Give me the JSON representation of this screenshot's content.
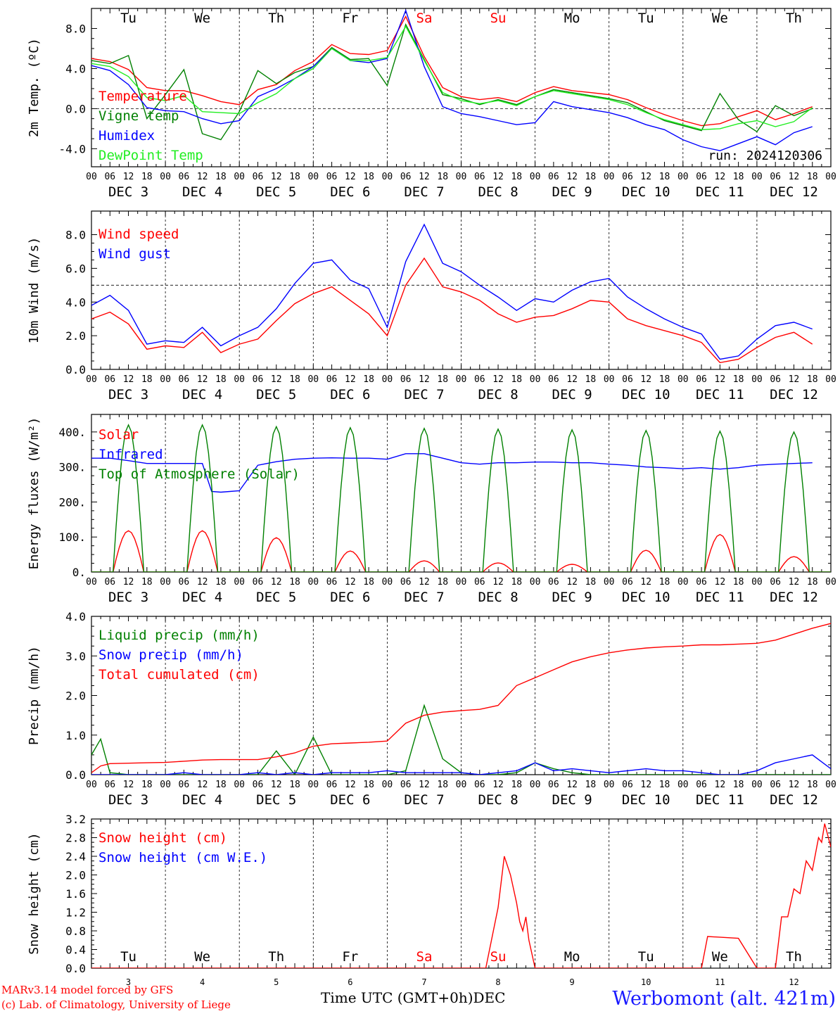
{
  "colors": {
    "red": "#ff0000",
    "green": "#008000",
    "blue": "#0000ff",
    "lightgreen": "#22ee22",
    "axis": "#000000"
  },
  "days": {
    "weekdays": [
      "Tu",
      "We",
      "Th",
      "Fr",
      "Sa",
      "Su",
      "Mo",
      "Tu",
      "We",
      "Th"
    ],
    "weekday_colors": [
      "#000000",
      "#000000",
      "#000000",
      "#000000",
      "#ff0000",
      "#ff0000",
      "#000000",
      "#000000",
      "#000000",
      "#000000"
    ],
    "dates": [
      "DEC  3",
      "DEC  4",
      "DEC  5",
      "DEC  6",
      "DEC  7",
      "DEC  8",
      "DEC  9",
      "DEC 10",
      "DEC 11",
      "DEC 12"
    ],
    "hour_ticks": [
      "00",
      "06",
      "12",
      "18"
    ],
    "bottom_numbers": [
      "3",
      "4",
      "5",
      "6",
      "7",
      "8",
      "9",
      "10",
      "11",
      "12"
    ],
    "bottom_month": "DEC"
  },
  "footer": {
    "credit1": "MARv3.14 model forced by GFS",
    "credit2": "(c) Lab. of Climatology, University of Liege",
    "xtitle": "Time UTC (GMT+0h)",
    "station": "Werbomont (alt. 421m)"
  },
  "chart_data": [
    {
      "type": "line",
      "ylabel": "2m Temp. (ºC)",
      "ylim": [
        -5.8,
        10
      ],
      "yticks": [
        "8.0",
        "4.0",
        "0.0",
        "-4.0"
      ],
      "ytick_values": [
        8,
        4,
        0,
        -4
      ],
      "ref_line": 0,
      "annotation": "run: 2024120306",
      "x_hours": [
        0,
        6,
        12,
        18,
        24,
        30,
        36,
        42,
        48,
        54,
        60,
        66,
        72,
        78,
        84,
        90,
        96,
        102,
        108,
        114,
        120,
        126,
        132,
        138,
        144,
        150,
        156,
        162,
        168,
        174,
        180,
        186,
        192,
        198,
        204,
        210,
        216,
        222,
        228,
        234
      ],
      "series": [
        {
          "name": "Temperature",
          "color": "#ff0000",
          "values": [
            5.0,
            4.7,
            3.9,
            2.1,
            1.8,
            1.8,
            1.3,
            0.7,
            0.4,
            1.9,
            2.4,
            3.8,
            4.7,
            6.4,
            5.5,
            5.4,
            5.8,
            9.2,
            5.2,
            2.1,
            1.2,
            0.9,
            1.1,
            0.7,
            1.6,
            2.2,
            1.8,
            1.6,
            1.4,
            0.9,
            0.1,
            -0.6,
            -1.2,
            -1.7,
            -1.5,
            -0.8,
            -0.2,
            -1.1,
            -0.5,
            0.2
          ]
        },
        {
          "name": "Vigne temp",
          "color": "#008000",
          "values": [
            4.8,
            4.5,
            5.3,
            -1.0,
            1.4,
            3.9,
            -2.5,
            -3.1,
            -0.3,
            3.8,
            2.5,
            3.6,
            4.2,
            6.1,
            4.9,
            5.0,
            2.3,
            8.4,
            4.9,
            1.4,
            1.0,
            0.4,
            0.9,
            0.4,
            1.2,
            1.9,
            1.6,
            1.3,
            1.0,
            0.6,
            -0.3,
            -1.2,
            -1.7,
            -2.2,
            1.5,
            -1.1,
            -2.3,
            0.3,
            -0.7,
            0.0
          ]
        },
        {
          "name": "Humidex",
          "color": "#0000ff",
          "values": [
            4.3,
            3.8,
            2.4,
            0.1,
            -0.2,
            -0.3,
            -1.0,
            -1.5,
            -1.2,
            1.2,
            2.0,
            3.0,
            4.2,
            6.0,
            4.8,
            4.6,
            5.0,
            9.8,
            4.2,
            0.2,
            -0.5,
            -0.8,
            -1.2,
            -1.6,
            -1.4,
            0.7,
            0.2,
            -0.1,
            -0.4,
            -0.9,
            -1.6,
            -2.1,
            -3.1,
            -3.8,
            -4.2,
            -3.5,
            -2.8,
            -3.6,
            -2.4,
            -1.8
          ]
        },
        {
          "name": "DewPoint Temp",
          "color": "#22ee22",
          "values": [
            4.5,
            4.2,
            3.2,
            1.1,
            0.8,
            1.3,
            -0.3,
            -0.4,
            -0.5,
            0.6,
            1.5,
            3.0,
            4.0,
            6.0,
            4.8,
            4.8,
            5.1,
            8.2,
            4.8,
            1.6,
            0.8,
            0.5,
            0.8,
            0.3,
            1.2,
            1.8,
            1.5,
            1.2,
            0.9,
            0.4,
            -0.4,
            -1.1,
            -1.6,
            -2.1,
            -2.0,
            -1.5,
            -1.2,
            -1.8,
            -1.3,
            0.1
          ]
        }
      ]
    },
    {
      "type": "line",
      "ylabel": "10m Wind (m/s)",
      "ylim": [
        0,
        9.4
      ],
      "yticks": [
        "8.0",
        "6.0",
        "4.0",
        "2.0",
        "0.0"
      ],
      "ytick_values": [
        8,
        6,
        4,
        2,
        0
      ],
      "ref_line": 5,
      "x_hours": [
        0,
        6,
        12,
        18,
        24,
        30,
        36,
        42,
        48,
        54,
        60,
        66,
        72,
        78,
        84,
        90,
        96,
        102,
        108,
        114,
        120,
        126,
        132,
        138,
        144,
        150,
        156,
        162,
        168,
        174,
        180,
        186,
        192,
        198,
        204,
        210,
        216,
        222,
        228,
        234
      ],
      "series": [
        {
          "name": "Wind speed",
          "color": "#ff0000",
          "values": [
            3.0,
            3.4,
            2.7,
            1.2,
            1.4,
            1.3,
            2.2,
            1.0,
            1.5,
            1.8,
            2.9,
            3.9,
            4.5,
            4.9,
            4.1,
            3.3,
            2.0,
            5.0,
            6.6,
            4.9,
            4.6,
            4.1,
            3.3,
            2.8,
            3.1,
            3.2,
            3.6,
            4.1,
            4.0,
            3.0,
            2.6,
            2.3,
            2.0,
            1.6,
            0.4,
            0.6,
            1.3,
            1.9,
            2.2,
            1.5
          ]
        },
        {
          "name": "Wind gust",
          "color": "#0000ff",
          "values": [
            3.8,
            4.4,
            3.5,
            1.5,
            1.7,
            1.6,
            2.5,
            1.4,
            2.0,
            2.5,
            3.6,
            5.1,
            6.3,
            6.5,
            5.3,
            4.8,
            2.5,
            6.4,
            8.6,
            6.3,
            5.8,
            5.0,
            4.3,
            3.5,
            4.2,
            4.0,
            4.7,
            5.2,
            5.4,
            4.3,
            3.6,
            3.0,
            2.5,
            2.1,
            0.6,
            0.8,
            1.8,
            2.6,
            2.8,
            2.4
          ]
        }
      ]
    },
    {
      "type": "line",
      "ylabel": "Energy fluxes (W/m²)",
      "ylim": [
        0,
        450
      ],
      "yticks": [
        "400.",
        "300.",
        "200.",
        "100.",
        "0."
      ],
      "ytick_values": [
        400,
        300,
        200,
        100,
        0
      ],
      "diurnal": {
        "solar_peaks": [
          118,
          118,
          98,
          60,
          32,
          26,
          22,
          62,
          107,
          44
        ],
        "toa_peaks": [
          420,
          420,
          415,
          412,
          410,
          408,
          406,
          404,
          402,
          400
        ],
        "day_start_hour": 7,
        "day_end_hour": 17
      },
      "series": [
        {
          "name": "Solar",
          "color": "#ff0000",
          "values": []
        },
        {
          "name": "Infrared",
          "color": "#0000ff",
          "x_hours": [
            0,
            6,
            12,
            18,
            24,
            30,
            36,
            39,
            42,
            48,
            54,
            60,
            66,
            72,
            78,
            84,
            90,
            96,
            102,
            108,
            114,
            120,
            126,
            132,
            138,
            144,
            150,
            156,
            162,
            168,
            174,
            180,
            186,
            192,
            198,
            204,
            210,
            216,
            222,
            228,
            234
          ],
          "values": [
            325,
            325,
            318,
            310,
            310,
            310,
            310,
            230,
            228,
            232,
            305,
            315,
            322,
            325,
            326,
            325,
            325,
            322,
            338,
            338,
            325,
            312,
            308,
            312,
            312,
            314,
            314,
            312,
            312,
            308,
            305,
            300,
            298,
            295,
            298,
            294,
            298,
            305,
            308,
            310,
            312
          ]
        },
        {
          "name": "Top of Atmosphere (Solar)",
          "color": "#008000",
          "values": []
        }
      ]
    },
    {
      "type": "line",
      "ylabel": "Precip (mm/h)",
      "ylim": [
        0,
        4.0
      ],
      "yticks": [
        "4.0",
        "3.0",
        "2.0",
        "1.0",
        "0.0"
      ],
      "ytick_values": [
        4,
        3,
        2,
        1,
        0
      ],
      "x_hours": [
        0,
        3,
        6,
        12,
        18,
        24,
        30,
        36,
        42,
        48,
        54,
        60,
        66,
        72,
        78,
        84,
        90,
        96,
        102,
        108,
        114,
        120,
        126,
        132,
        138,
        144,
        150,
        156,
        162,
        168,
        174,
        180,
        186,
        192,
        198,
        204,
        210,
        216,
        222,
        228,
        234,
        240
      ],
      "series": [
        {
          "name": "Liquid precip (mm/h)",
          "color": "#008000",
          "values": [
            0.5,
            0.9,
            0.05,
            0.0,
            0.0,
            0.0,
            0.0,
            0.0,
            0.0,
            0.0,
            0.0,
            0.6,
            0.0,
            0.95,
            0.0,
            0.0,
            0.0,
            0.0,
            0.1,
            1.75,
            0.4,
            0.05,
            0.0,
            0.0,
            0.05,
            0.3,
            0.15,
            0.05,
            0.0,
            0.0,
            0.0,
            0.0,
            0.0,
            0.0,
            0.0,
            0.0,
            0.0,
            0.0,
            0.0,
            0.0,
            0.0,
            0.0
          ]
        },
        {
          "name": "Snow precip (mm/h)",
          "color": "#0000ff",
          "values": [
            0.0,
            0.0,
            0.0,
            0.0,
            0.0,
            0.0,
            0.05,
            0.0,
            0.0,
            0.0,
            0.05,
            0.0,
            0.05,
            0.0,
            0.05,
            0.05,
            0.05,
            0.1,
            0.05,
            0.05,
            0.05,
            0.05,
            0.0,
            0.05,
            0.1,
            0.3,
            0.1,
            0.15,
            0.1,
            0.05,
            0.1,
            0.15,
            0.1,
            0.1,
            0.05,
            0.0,
            0.0,
            0.1,
            0.3,
            0.4,
            0.5,
            0.15
          ]
        },
        {
          "name": "Total cumulated (cm)",
          "color": "#ff0000",
          "values": [
            0.05,
            0.22,
            0.28,
            0.29,
            0.3,
            0.31,
            0.34,
            0.37,
            0.38,
            0.38,
            0.38,
            0.45,
            0.55,
            0.72,
            0.78,
            0.8,
            0.82,
            0.85,
            1.3,
            1.5,
            1.58,
            1.62,
            1.65,
            1.75,
            2.25,
            2.45,
            2.65,
            2.85,
            2.98,
            3.08,
            3.15,
            3.2,
            3.23,
            3.25,
            3.28,
            3.28,
            3.3,
            3.32,
            3.4,
            3.55,
            3.7,
            3.82
          ]
        }
      ]
    },
    {
      "type": "line",
      "ylabel": "Snow height (cm)",
      "ylim": [
        0,
        3.2
      ],
      "yticks": [
        "3.2",
        "2.8",
        "2.4",
        "2.0",
        "1.6",
        "1.2",
        "0.8",
        "0.4",
        "0.0"
      ],
      "ytick_values": [
        3.2,
        2.8,
        2.4,
        2.0,
        1.6,
        1.2,
        0.8,
        0.4,
        0.0
      ],
      "x_hours": [
        0,
        120,
        128,
        132,
        134,
        136,
        138,
        139,
        140,
        141,
        142,
        144,
        198,
        200,
        210,
        216,
        218,
        222,
        224,
        226,
        228,
        230,
        232,
        234,
        236,
        237,
        238,
        240
      ],
      "series": [
        {
          "name": "Snow height (cm)",
          "color": "#ff0000",
          "values": [
            0,
            0,
            0,
            1.3,
            2.4,
            2.0,
            1.4,
            1.0,
            0.8,
            1.1,
            0.6,
            0,
            0,
            0.68,
            0.64,
            0,
            0,
            0,
            1.1,
            1.1,
            1.7,
            1.6,
            2.3,
            2.1,
            2.8,
            2.7,
            3.1,
            2.6
          ]
        },
        {
          "name": "Snow height (cm W.E.)",
          "color": "#0000ff",
          "values": []
        }
      ]
    }
  ]
}
